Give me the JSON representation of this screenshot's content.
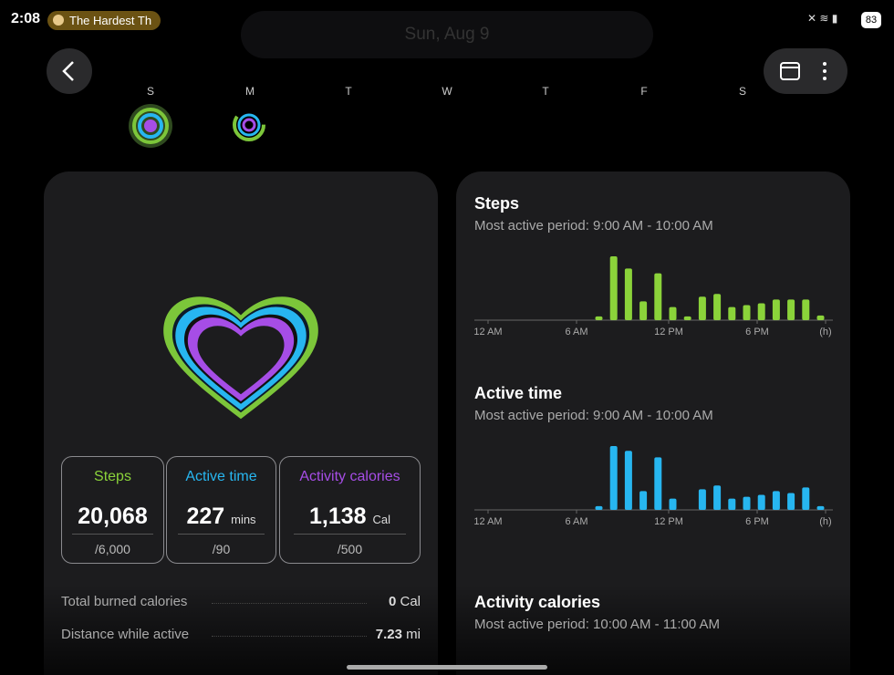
{
  "status_bar": {
    "time": "2:08",
    "media": "The Hardest Th",
    "battery": "83"
  },
  "header": {
    "date": "Sun, Aug 9",
    "weekdays": [
      "S",
      "M",
      "T",
      "W",
      "T",
      "F",
      "S"
    ]
  },
  "summary": {
    "stats": [
      {
        "label": "Steps",
        "value": "20,068",
        "goal": "/6,000",
        "color": "#8bd33a"
      },
      {
        "label": "Active time",
        "value": "227",
        "unit": "mins",
        "goal": "/90",
        "color": "#27b6f0"
      },
      {
        "label": "Activity calories",
        "value": "1,138",
        "unit": "Cal",
        "goal": "/500",
        "color": "#a64de6"
      }
    ],
    "details": [
      {
        "label": "Total burned calories",
        "value": "0",
        "unit": "Cal"
      },
      {
        "label": "Distance while active",
        "value": "7.23",
        "unit": "mi"
      }
    ]
  },
  "charts": [
    {
      "type": "bar",
      "title": "Steps",
      "subtitle": "Most active period: 9:00 AM - 10:00 AM",
      "color": "#8bd33a",
      "values": [
        0,
        0,
        0,
        0,
        0,
        0,
        0,
        4,
        68,
        55,
        20,
        50,
        14,
        4,
        25,
        28,
        14,
        16,
        18,
        22,
        22,
        22,
        5,
        0
      ],
      "ylim": [
        0,
        70
      ],
      "x_labels": [
        "12 AM",
        "6 AM",
        "12 PM",
        "6 PM",
        "(h)"
      ]
    },
    {
      "type": "bar",
      "title": "Active time",
      "subtitle": "Most active period: 9:00 AM - 10:00 AM",
      "color": "#27b6f0",
      "values": [
        0,
        0,
        0,
        0,
        0,
        0,
        0,
        4,
        68,
        63,
        20,
        56,
        12,
        0,
        22,
        26,
        12,
        14,
        16,
        20,
        18,
        24,
        4,
        0
      ],
      "ylim": [
        0,
        70
      ],
      "x_labels": [
        "12 AM",
        "6 AM",
        "12 PM",
        "6 PM",
        "(h)"
      ]
    },
    {
      "title": "Activity calories",
      "subtitle": "Most active period: 10:00 AM - 11:00 AM"
    }
  ]
}
